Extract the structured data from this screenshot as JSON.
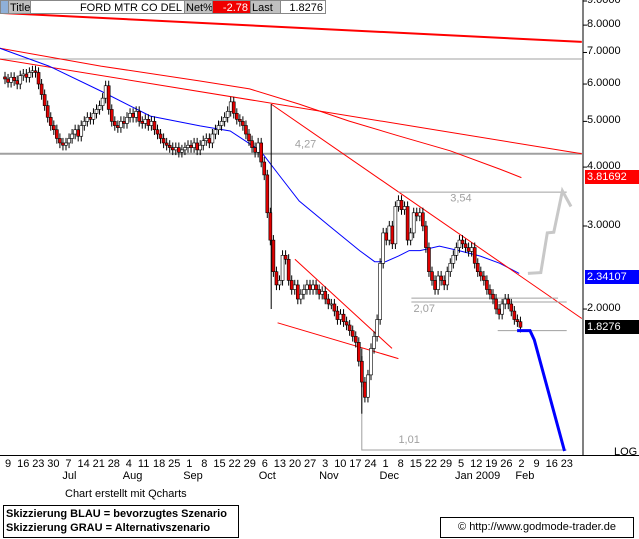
{
  "header": {
    "title_label": "Title",
    "symbol": "FORD MTR CO DEL",
    "net_label": "Net%",
    "net_value": "-2.78",
    "last_label": "Last",
    "last_value": "1.8276"
  },
  "colors": {
    "up": "#ffffff",
    "down": "#e00000",
    "ma_blue": "#0000ff",
    "trend_red": "#ff0000",
    "support_gray": "#a0a0a0",
    "scenario_blue": "#0000ff",
    "scenario_gray": "#c8c8c8"
  },
  "chart_data": {
    "type": "candlestick",
    "scale": "log",
    "ylim": [
      0.99,
      9.05
    ],
    "y_ticks": [
      "9.0000",
      "8.0000",
      "7.0000",
      "6.0000",
      "5.0000",
      "4.0000",
      "3.0000",
      "2.0000"
    ],
    "y_tick_values": [
      9,
      8,
      7,
      6,
      5,
      4,
      3,
      2
    ],
    "scale_label": "LOG",
    "x_ticks": [
      "9",
      "16",
      "23",
      "30",
      "7",
      "14",
      "21",
      "28",
      "4",
      "11",
      "18",
      "25",
      "1",
      "8",
      "15",
      "22",
      "29",
      "6",
      "13",
      "20",
      "27",
      "3",
      "10",
      "17",
      "24",
      "1",
      "8",
      "15",
      "22",
      "29",
      "5",
      "12",
      "19",
      "26",
      "2",
      "9",
      "16",
      "23"
    ],
    "x_tick_dates": [
      "2008-06-09",
      "2008-06-16",
      "2008-06-23",
      "2008-06-30",
      "2008-07-07",
      "2008-07-14",
      "2008-07-21",
      "2008-07-28",
      "2008-08-04",
      "2008-08-11",
      "2008-08-18",
      "2008-08-25",
      "2008-09-01",
      "2008-09-08",
      "2008-09-15",
      "2008-09-22",
      "2008-09-29",
      "2008-10-06",
      "2008-10-13",
      "2008-10-20",
      "2008-10-27",
      "2008-11-03",
      "2008-11-10",
      "2008-11-17",
      "2008-11-24",
      "2008-12-01",
      "2008-12-08",
      "2008-12-15",
      "2008-12-22",
      "2008-12-29",
      "2009-01-05",
      "2009-01-12",
      "2009-01-19",
      "2009-01-26",
      "2009-02-02",
      "2009-02-09",
      "2009-02-16",
      "2009-02-23"
    ],
    "month_labels": [
      {
        "label": "Jul",
        "date": "2008-07-07"
      },
      {
        "label": "Aug",
        "date": "2008-08-04"
      },
      {
        "label": "Sep",
        "date": "2008-09-01"
      },
      {
        "label": "Oct",
        "date": "2008-10-06"
      },
      {
        "label": "Nov",
        "date": "2008-11-03"
      },
      {
        "label": "Dec",
        "date": "2008-12-01"
      },
      {
        "label": "Jan 2009",
        "date": "2009-01-05"
      },
      {
        "label": "Feb",
        "date": "2009-02-02"
      }
    ],
    "closes": [
      6.15,
      6.05,
      6.2,
      6.1,
      6.0,
      6.25,
      6.3,
      6.2,
      6.35,
      6.4,
      6.35,
      6.0,
      5.7,
      5.4,
      5.1,
      4.9,
      4.8,
      4.6,
      4.5,
      4.45,
      4.5,
      4.6,
      4.7,
      4.8,
      4.65,
      4.9,
      5.0,
      5.1,
      5.05,
      5.2,
      5.3,
      5.4,
      5.6,
      5.95,
      5.3,
      5.0,
      4.9,
      4.85,
      5.0,
      4.95,
      5.1,
      5.2,
      5.1,
      5.25,
      5.0,
      4.95,
      5.05,
      4.9,
      5.0,
      4.8,
      4.7,
      4.6,
      4.5,
      4.45,
      4.4,
      4.35,
      4.4,
      4.3,
      4.35,
      4.4,
      4.45,
      4.4,
      4.5,
      4.35,
      4.45,
      4.55,
      4.6,
      4.5,
      4.7,
      4.8,
      4.9,
      5.0,
      5.1,
      5.25,
      5.5,
      5.2,
      5.05,
      5.0,
      4.9,
      4.7,
      4.55,
      4.4,
      4.3,
      4.5,
      4.1,
      3.85,
      3.2,
      2.8,
      2.4,
      2.25,
      2.3,
      2.6,
      2.55,
      2.3,
      2.2,
      2.25,
      2.1,
      2.15,
      2.2,
      2.25,
      2.2,
      2.25,
      2.2,
      2.15,
      2.18,
      2.1,
      2.05,
      2.05,
      1.98,
      1.9,
      1.95,
      1.88,
      1.85,
      1.8,
      1.75,
      1.7,
      1.55,
      1.4,
      1.3,
      1.45,
      1.65,
      1.75,
      1.9,
      2.5,
      2.9,
      2.8,
      3.0,
      2.75,
      3.3,
      3.4,
      3.25,
      3.3,
      2.8,
      2.9,
      3.2,
      3.15,
      3.2,
      3.0,
      2.7,
      2.4,
      2.3,
      2.2,
      2.35,
      2.3,
      2.25,
      2.4,
      2.5,
      2.6,
      2.7,
      2.8,
      2.75,
      2.7,
      2.65,
      2.7,
      2.5,
      2.4,
      2.35,
      2.3,
      2.2,
      2.15,
      2.1,
      2.0,
      1.95,
      2.05,
      2.1,
      2.05,
      1.98,
      1.9,
      1.88,
      1.83
    ],
    "lines": [
      {
        "kind": "trend-red-upper",
        "color": "#ff0000",
        "width": 2,
        "points": [
          [
            "2008-06-05",
            8.49
          ],
          [
            "2009-03-02",
            7.37
          ]
        ]
      },
      {
        "kind": "resistance-gray-upper",
        "color": "#a0a0a0",
        "width": 1,
        "points": [
          [
            "2008-06-05",
            6.78
          ],
          [
            "2009-03-02",
            6.78
          ]
        ]
      },
      {
        "kind": "support-gray-4.27",
        "color": "#a0a0a0",
        "width": 2,
        "points": [
          [
            "2008-06-05",
            4.27
          ],
          [
            "2009-03-02",
            4.27
          ]
        ]
      },
      {
        "kind": "trend-red-long",
        "color": "#ff0000",
        "width": 1,
        "points": [
          [
            "2008-06-05",
            6.78
          ],
          [
            "2009-03-02",
            4.27
          ]
        ]
      },
      {
        "kind": "ma-red",
        "color": "#ff0000",
        "width": 1,
        "points": [
          [
            "2008-06-05",
            7.15
          ],
          [
            "2008-07-22",
            6.55
          ],
          [
            "2008-09-06",
            6.09
          ],
          [
            "2008-09-29",
            5.86
          ],
          [
            "2008-10-22",
            5.44
          ],
          [
            "2008-11-14",
            5.01
          ],
          [
            "2008-12-07",
            4.66
          ],
          [
            "2008-12-31",
            4.33
          ],
          [
            "2009-01-23",
            3.96
          ],
          [
            "2009-02-02",
            3.8
          ]
        ]
      },
      {
        "kind": "ma-blue",
        "color": "#0000ff",
        "width": 1,
        "points": [
          [
            "2008-06-05",
            7.15
          ],
          [
            "2008-06-28",
            6.55
          ],
          [
            "2008-07-22",
            5.8
          ],
          [
            "2008-08-14",
            5.13
          ],
          [
            "2008-09-06",
            4.89
          ],
          [
            "2008-09-20",
            4.77
          ],
          [
            "2008-10-04",
            4.33
          ],
          [
            "2008-10-13",
            3.83
          ],
          [
            "2008-10-22",
            3.39
          ],
          [
            "2008-11-05",
            3.0
          ],
          [
            "2008-11-19",
            2.66
          ],
          [
            "2008-11-26",
            2.52
          ],
          [
            "2008-12-01",
            2.52
          ],
          [
            "2008-12-07",
            2.59
          ],
          [
            "2008-12-12",
            2.66
          ],
          [
            "2008-12-17",
            2.66
          ],
          [
            "2008-12-26",
            2.72
          ],
          [
            "2009-01-04",
            2.66
          ],
          [
            "2009-01-14",
            2.59
          ],
          [
            "2009-01-23",
            2.5
          ],
          [
            "2009-02-01",
            2.38
          ]
        ]
      },
      {
        "kind": "downtrend-red",
        "color": "#ff0000",
        "width": 1,
        "points": [
          [
            "2008-10-09",
            5.44
          ],
          [
            "2009-03-02",
            1.91
          ]
        ]
      },
      {
        "kind": "channel-upper",
        "color": "#ff0000",
        "width": 1,
        "points": [
          [
            "2008-10-20",
            2.55
          ],
          [
            "2008-12-04",
            1.65
          ]
        ]
      },
      {
        "kind": "channel-lower",
        "color": "#ff0000",
        "width": 1,
        "points": [
          [
            "2008-10-12",
            1.87
          ],
          [
            "2008-12-07",
            1.57
          ]
        ]
      },
      {
        "kind": "level-3.54",
        "color": "#a0a0a0",
        "width": 1,
        "points": [
          [
            "2008-12-07",
            3.54
          ],
          [
            "2009-02-23",
            3.54
          ]
        ]
      },
      {
        "kind": "level-2.11",
        "color": "#a0a0a0",
        "width": 1,
        "points": [
          [
            "2008-12-13",
            2.11
          ],
          [
            "2009-02-19",
            2.11
          ]
        ]
      },
      {
        "kind": "level-2.07",
        "color": "#a0a0a0",
        "width": 1,
        "points": [
          [
            "2008-12-13",
            2.07
          ],
          [
            "2009-02-23",
            2.07
          ]
        ]
      },
      {
        "kind": "level-1.80",
        "color": "#a0a0a0",
        "width": 1,
        "points": [
          [
            "2009-01-22",
            1.8
          ],
          [
            "2009-02-23",
            1.8
          ]
        ]
      },
      {
        "kind": "level-1.01",
        "color": "#a0a0a0",
        "width": 1,
        "points": [
          [
            "2008-11-20",
            1.59
          ],
          [
            "2008-11-20",
            1.005
          ],
          [
            "2009-02-23",
            1.005
          ]
        ]
      },
      {
        "kind": "scenario-gray",
        "color": "#c8c8c8",
        "width": 3,
        "points": [
          [
            "2009-02-05",
            2.38
          ],
          [
            "2009-02-11",
            2.39
          ],
          [
            "2009-02-14",
            2.9
          ],
          [
            "2009-02-17",
            2.91
          ],
          [
            "2009-02-21",
            3.56
          ],
          [
            "2009-02-25",
            3.3
          ]
        ]
      },
      {
        "kind": "scenario-blue",
        "color": "#0000ff",
        "width": 3,
        "points": [
          [
            "2009-01-31",
            1.8
          ],
          [
            "2009-02-06",
            1.8
          ],
          [
            "2009-02-08",
            1.72
          ],
          [
            "2009-02-22",
            1.0
          ]
        ]
      },
      {
        "kind": "wick-oct",
        "color": "#000000",
        "width": 1,
        "points": [
          [
            "2008-10-09",
            5.44
          ],
          [
            "2008-10-09",
            2.0
          ]
        ]
      },
      {
        "kind": "wick-nov",
        "color": "#000000",
        "width": 1,
        "points": [
          [
            "2008-11-20",
            1.65
          ],
          [
            "2008-11-20",
            1.2
          ]
        ]
      }
    ],
    "annotations": [
      {
        "text": "4,27",
        "date": "2008-10-20",
        "price": 4.4
      },
      {
        "text": "3,54",
        "date": "2008-12-31",
        "price": 3.38
      },
      {
        "text": "2,07",
        "date": "2008-12-14",
        "price": 1.97
      },
      {
        "text": "1,01",
        "date": "2008-12-07",
        "price": 1.04
      }
    ],
    "price_badges": [
      {
        "value": "3.81692",
        "color": "#ff0000"
      },
      {
        "value": "2.34107",
        "color": "#0000ff"
      },
      {
        "value": "1.8276",
        "color": "#000000"
      }
    ],
    "price_badge_values": [
      3.81692,
      2.34107,
      1.8276
    ]
  },
  "footer": {
    "credit": "Chart erstellt mit Qcharts",
    "legend_blue": "Skizzierung BLAU = bevorzugtes Szenario",
    "legend_gray": "Skizzierung GRAU = Alternativszenario",
    "copyright": "© http://www.godmode-trader.de"
  }
}
